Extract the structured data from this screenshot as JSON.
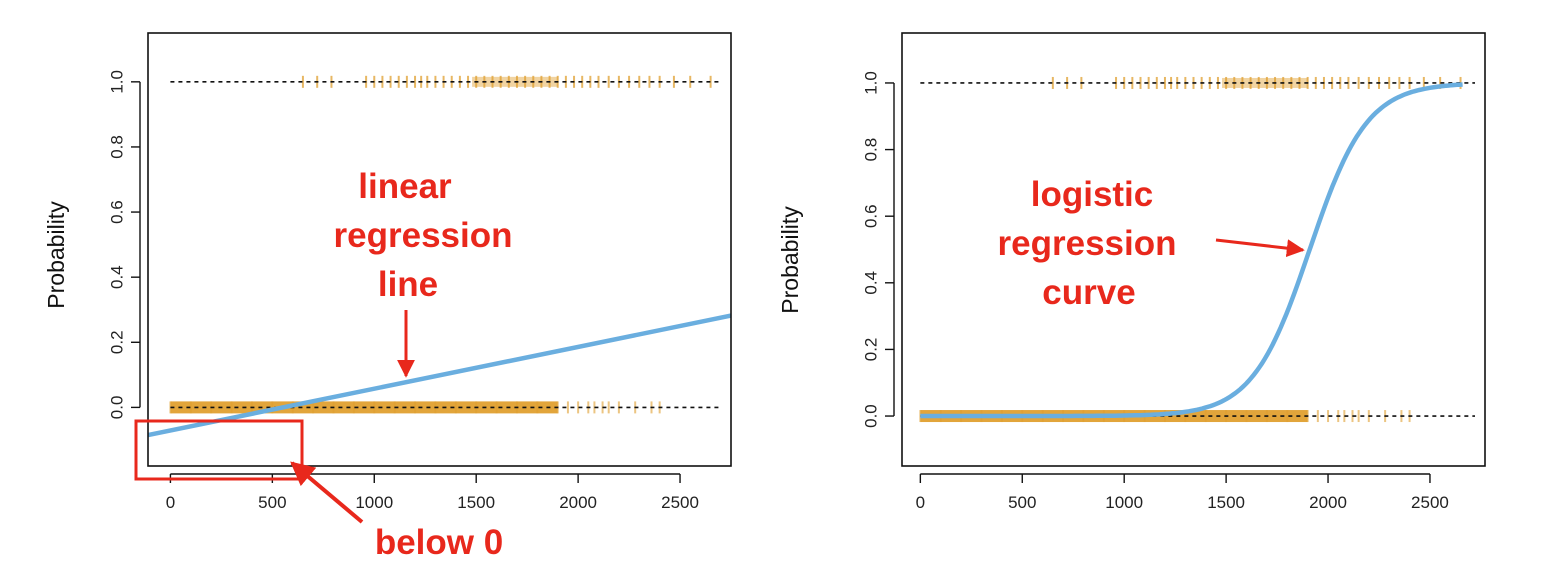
{
  "colors": {
    "line": "#6aaedf",
    "rug": "#e0a030",
    "annotation": "#e8281c",
    "axis": "#111111",
    "reference": "#111111"
  },
  "chart_data": [
    {
      "type": "line",
      "name": "linear",
      "ylabel": "Probability",
      "xlim": [
        -110,
        2750
      ],
      "ylim": [
        -0.18,
        1.15
      ],
      "xticks": [
        "0",
        "500",
        "1000",
        "1500",
        "2000",
        "2500"
      ],
      "xtick_values": [
        0,
        500,
        1000,
        1500,
        2000,
        2500
      ],
      "yticks": [
        "0.0",
        "0.2",
        "0.4",
        "0.6",
        "0.8",
        "1.0"
      ],
      "ytick_values": [
        0,
        0.2,
        0.4,
        0.6,
        0.8,
        1.0
      ],
      "reference_lines": [
        0,
        1
      ],
      "grid": false,
      "curve": {
        "kind": "linear",
        "x": [
          -110,
          2750
        ],
        "y": [
          -0.085,
          0.282
        ]
      },
      "rug_zero_x": [
        0,
        100,
        200,
        300,
        400,
        500,
        600,
        700,
        800,
        900,
        1000,
        1100,
        1200,
        1300,
        1400,
        1500,
        1600,
        1700,
        1800,
        1900,
        1950,
        2000,
        2050,
        2080,
        2120,
        2150,
        2200,
        2280,
        2360,
        2400
      ],
      "rug_one_x": [
        650,
        720,
        790,
        960,
        1000,
        1040,
        1080,
        1120,
        1160,
        1200,
        1230,
        1260,
        1300,
        1340,
        1380,
        1420,
        1460,
        1500,
        1540,
        1580,
        1620,
        1660,
        1700,
        1740,
        1780,
        1820,
        1860,
        1900,
        1940,
        1980,
        2020,
        2060,
        2100,
        2150,
        2200,
        2250,
        2300,
        2350,
        2400,
        2470,
        2550,
        2650
      ],
      "annotations": [
        {
          "lines": [
            "linear",
            "regression",
            "line"
          ]
        },
        {
          "lines": [
            "below 0"
          ]
        }
      ]
    },
    {
      "type": "line",
      "name": "logistic",
      "ylabel": "Probability",
      "xlim": [
        -90,
        2770
      ],
      "ylim": [
        -0.15,
        1.15
      ],
      "xticks": [
        "0",
        "500",
        "1000",
        "1500",
        "2000",
        "2500"
      ],
      "xtick_values": [
        0,
        500,
        1000,
        1500,
        2000,
        2500
      ],
      "yticks": [
        "0.0",
        "0.2",
        "0.4",
        "0.6",
        "0.8",
        "1.0"
      ],
      "ytick_values": [
        0,
        0.2,
        0.4,
        0.6,
        0.8,
        1.0
      ],
      "reference_lines": [
        0,
        1
      ],
      "grid": false,
      "curve": {
        "kind": "logistic",
        "x_range": [
          0,
          2660
        ],
        "midpoint": 1910,
        "scale": 140
      },
      "rug_zero_x": [
        0,
        100,
        200,
        300,
        400,
        500,
        600,
        700,
        800,
        900,
        1000,
        1100,
        1200,
        1300,
        1400,
        1500,
        1600,
        1700,
        1800,
        1900,
        1950,
        2000,
        2050,
        2080,
        2120,
        2150,
        2200,
        2280,
        2360,
        2400
      ],
      "rug_one_x": [
        650,
        720,
        790,
        960,
        1000,
        1040,
        1080,
        1120,
        1160,
        1200,
        1230,
        1260,
        1300,
        1340,
        1380,
        1420,
        1460,
        1500,
        1540,
        1580,
        1620,
        1660,
        1700,
        1740,
        1780,
        1820,
        1860,
        1900,
        1940,
        1980,
        2020,
        2060,
        2100,
        2150,
        2200,
        2250,
        2300,
        2350,
        2400,
        2470,
        2550,
        2650
      ],
      "annotations": [
        {
          "lines": [
            "logistic",
            "regression",
            "curve"
          ]
        }
      ]
    }
  ]
}
